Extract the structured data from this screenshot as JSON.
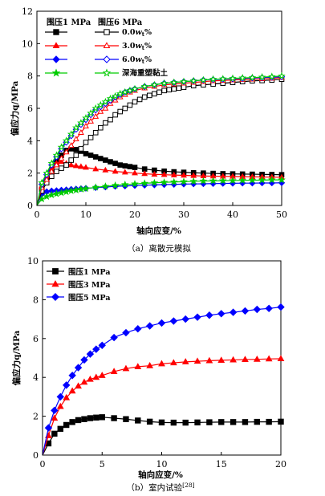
{
  "chart_data": [
    {
      "type": "line",
      "caption": "（a）离散元模拟",
      "xlabel": "轴向应变/%",
      "ylabel": "偏应力q/MPa",
      "xlim": [
        0,
        50
      ],
      "ylim": [
        0,
        12
      ],
      "xticks": [
        "0",
        "10",
        "20",
        "30",
        "40",
        "50"
      ],
      "yticks": [
        "0",
        "2",
        "4",
        "6",
        "8",
        "10",
        "12"
      ],
      "grid": false,
      "legend_placement": "top-left",
      "legend_headers": [
        "围压1 MPa",
        "围压6 MPa"
      ],
      "legend_rows": [
        "0.0w_t%",
        "3.0w_t%",
        "6.0w_t%",
        "深海重塑黏土"
      ],
      "series": [
        {
          "name": "0.0w_t%",
          "confining": "围压1 MPa",
          "color": "#000000",
          "marker": "square",
          "filled": true,
          "x": [
            0,
            1,
            2,
            3,
            4,
            5,
            6,
            7,
            8,
            9,
            10,
            11,
            12,
            13,
            14,
            15,
            16,
            17,
            18,
            19,
            20,
            22,
            24,
            26,
            28,
            30,
            32,
            34,
            36,
            38,
            40,
            42,
            44,
            46,
            48,
            50
          ],
          "y": [
            0,
            1.0,
            1.6,
            2.2,
            2.7,
            3.1,
            3.4,
            3.5,
            3.45,
            3.35,
            3.2,
            3.1,
            3.0,
            2.9,
            2.8,
            2.7,
            2.6,
            2.5,
            2.45,
            2.4,
            2.35,
            2.25,
            2.18,
            2.12,
            2.08,
            2.05,
            2.02,
            2.0,
            1.98,
            1.96,
            1.95,
            1.94,
            1.93,
            1.92,
            1.91,
            1.9
          ]
        },
        {
          "name": "3.0w_t%",
          "confining": "围压1 MPa",
          "color": "#ff0000",
          "marker": "triangle",
          "filled": true,
          "x": [
            0,
            1,
            2,
            3,
            4,
            5,
            6,
            7,
            8,
            9,
            10,
            12,
            14,
            16,
            18,
            20,
            22,
            24,
            26,
            28,
            30,
            32,
            34,
            36,
            38,
            40,
            42,
            44,
            46,
            48,
            50
          ],
          "y": [
            0,
            1.2,
            1.8,
            2.3,
            2.6,
            2.7,
            2.6,
            2.5,
            2.45,
            2.4,
            2.35,
            2.25,
            2.18,
            2.1,
            2.05,
            2.0,
            1.96,
            1.92,
            1.9,
            1.88,
            1.86,
            1.84,
            1.82,
            1.81,
            1.8,
            1.79,
            1.78,
            1.77,
            1.76,
            1.75,
            1.74
          ]
        },
        {
          "name": "6.0w_t%",
          "confining": "围压1 MPa",
          "color": "#0000ff",
          "marker": "diamond",
          "filled": true,
          "x": [
            0,
            1,
            2,
            3,
            4,
            5,
            6,
            7,
            8,
            9,
            10,
            12,
            14,
            16,
            18,
            20,
            22,
            24,
            26,
            28,
            30,
            32,
            34,
            36,
            38,
            40,
            42,
            44,
            46,
            48,
            50
          ],
          "y": [
            0,
            0.7,
            0.85,
            0.9,
            0.92,
            0.95,
            0.97,
            1.0,
            1.02,
            1.04,
            1.06,
            1.1,
            1.14,
            1.18,
            1.2,
            1.23,
            1.25,
            1.27,
            1.29,
            1.3,
            1.32,
            1.33,
            1.34,
            1.35,
            1.36,
            1.37,
            1.38,
            1.38,
            1.39,
            1.39,
            1.4
          ]
        },
        {
          "name": "深海重塑黏土",
          "confining": "围压1 MPa",
          "color": "#00cc00",
          "marker": "star",
          "filled": true,
          "x": [
            0,
            1,
            2,
            3,
            4,
            5,
            6,
            7,
            8,
            9,
            10,
            12,
            14,
            16,
            18,
            20,
            22,
            24,
            26,
            28,
            30,
            32,
            34,
            36,
            38,
            40,
            42,
            44,
            46,
            48,
            50
          ],
          "y": [
            0,
            0.4,
            0.55,
            0.65,
            0.72,
            0.78,
            0.84,
            0.9,
            0.95,
            1.0,
            1.04,
            1.12,
            1.18,
            1.24,
            1.29,
            1.33,
            1.37,
            1.4,
            1.43,
            1.45,
            1.47,
            1.49,
            1.51,
            1.52,
            1.53,
            1.54,
            1.55,
            1.56,
            1.57,
            1.58,
            1.58
          ]
        },
        {
          "name": "0.0w_t%",
          "confining": "围压6 MPa",
          "color": "#000000",
          "marker": "square",
          "filled": false,
          "x": [
            0,
            1,
            2,
            3,
            4,
            5,
            6,
            7,
            8,
            9,
            10,
            11,
            12,
            13,
            14,
            15,
            16,
            17,
            18,
            19,
            20,
            21,
            22,
            23,
            24,
            25,
            26,
            27,
            28,
            29,
            30,
            32,
            34,
            36,
            38,
            40,
            42,
            44,
            46,
            48,
            50
          ],
          "y": [
            0,
            0.9,
            1.4,
            1.8,
            2.1,
            2.3,
            2.5,
            2.8,
            3.1,
            3.5,
            3.9,
            4.2,
            4.5,
            4.8,
            5.1,
            5.3,
            5.6,
            5.8,
            6.0,
            6.2,
            6.4,
            6.55,
            6.7,
            6.8,
            6.9,
            7.0,
            7.1,
            7.15,
            7.2,
            7.25,
            7.3,
            7.4,
            7.45,
            7.5,
            7.55,
            7.6,
            7.65,
            7.7,
            7.72,
            7.75,
            7.8
          ]
        },
        {
          "name": "3.0w_t%",
          "confining": "围压6 MPa",
          "color": "#ff0000",
          "marker": "triangle",
          "filled": false,
          "x": [
            0,
            1,
            2,
            3,
            4,
            5,
            6,
            7,
            8,
            9,
            10,
            11,
            12,
            13,
            14,
            15,
            16,
            17,
            18,
            19,
            20,
            22,
            24,
            26,
            28,
            30,
            32,
            34,
            36,
            38,
            40,
            42,
            44,
            46,
            48,
            50
          ],
          "y": [
            0,
            1.1,
            1.6,
            2.1,
            2.5,
            2.9,
            3.3,
            3.7,
            4.1,
            4.5,
            4.9,
            5.2,
            5.5,
            5.8,
            6.0,
            6.3,
            6.5,
            6.7,
            6.85,
            7.0,
            7.1,
            7.25,
            7.35,
            7.45,
            7.5,
            7.55,
            7.6,
            7.65,
            7.7,
            7.72,
            7.75,
            7.78,
            7.8,
            7.82,
            7.85,
            7.9
          ]
        },
        {
          "name": "6.0w_t%",
          "confining": "围压6 MPa",
          "color": "#0000ff",
          "marker": "diamond",
          "filled": false,
          "x": [
            0,
            1,
            2,
            3,
            4,
            5,
            6,
            7,
            8,
            9,
            10,
            11,
            12,
            13,
            14,
            15,
            16,
            17,
            18,
            19,
            20,
            22,
            24,
            26,
            28,
            30,
            32,
            34,
            36,
            38,
            40,
            42,
            44,
            46,
            48,
            50
          ],
          "y": [
            0,
            1.3,
            1.9,
            2.5,
            3.0,
            3.5,
            3.9,
            4.3,
            4.7,
            5.0,
            5.3,
            5.6,
            5.9,
            6.1,
            6.3,
            6.5,
            6.7,
            6.85,
            7.0,
            7.1,
            7.2,
            7.35,
            7.45,
            7.55,
            7.6,
            7.65,
            7.7,
            7.75,
            7.78,
            7.8,
            7.82,
            7.85,
            7.88,
            7.9,
            7.92,
            7.95
          ]
        },
        {
          "name": "深海重塑黏土",
          "confining": "围压6 MPa",
          "color": "#00cc00",
          "marker": "star",
          "filled": false,
          "x": [
            0,
            1,
            2,
            3,
            4,
            5,
            6,
            7,
            8,
            9,
            10,
            11,
            12,
            13,
            14,
            15,
            16,
            17,
            18,
            19,
            20,
            22,
            24,
            26,
            28,
            30,
            32,
            34,
            36,
            38,
            40,
            42,
            44,
            46,
            48,
            50
          ],
          "y": [
            0,
            1.4,
            2.0,
            2.6,
            3.1,
            3.6,
            4.0,
            4.4,
            4.8,
            5.1,
            5.4,
            5.7,
            6.0,
            6.2,
            6.4,
            6.6,
            6.75,
            6.9,
            7.0,
            7.1,
            7.2,
            7.35,
            7.45,
            7.55,
            7.6,
            7.65,
            7.7,
            7.75,
            7.8,
            7.82,
            7.85,
            7.88,
            7.9,
            7.93,
            7.96,
            8.0
          ]
        }
      ]
    },
    {
      "type": "line",
      "caption": "（b）室内试验",
      "caption_ref": "[28]",
      "xlabel": "轴向应变/%",
      "ylabel": "偏应力q/MPa",
      "xlim": [
        0,
        20
      ],
      "ylim": [
        0,
        10
      ],
      "xticks": [
        "0",
        "5",
        "10",
        "15",
        "20"
      ],
      "yticks": [
        "0",
        "2",
        "4",
        "6",
        "8",
        "10"
      ],
      "grid": false,
      "legend_placement": "top-left",
      "series": [
        {
          "name": "围压1 MPa",
          "color": "#000000",
          "marker": "square",
          "filled": true,
          "x": [
            0,
            0.5,
            1,
            1.5,
            2,
            2.5,
            3,
            3.5,
            4,
            4.5,
            5,
            6,
            7,
            8,
            9,
            10,
            11,
            12,
            13,
            14,
            15,
            16,
            17,
            18,
            19,
            20
          ],
          "y": [
            0,
            0.6,
            1.1,
            1.35,
            1.55,
            1.7,
            1.8,
            1.85,
            1.9,
            1.93,
            1.95,
            1.9,
            1.85,
            1.78,
            1.72,
            1.68,
            1.67,
            1.67,
            1.68,
            1.69,
            1.7,
            1.7,
            1.7,
            1.71,
            1.71,
            1.72
          ]
        },
        {
          "name": "围压3 MPa",
          "color": "#ff0000",
          "marker": "triangle",
          "filled": true,
          "x": [
            0,
            0.5,
            1,
            1.5,
            2,
            2.5,
            3,
            3.5,
            4,
            4.5,
            5,
            6,
            7,
            8,
            9,
            10,
            11,
            12,
            13,
            14,
            15,
            16,
            17,
            18,
            19,
            20
          ],
          "y": [
            0,
            1.0,
            1.9,
            2.5,
            2.95,
            3.3,
            3.55,
            3.75,
            3.9,
            4.0,
            4.1,
            4.3,
            4.45,
            4.55,
            4.6,
            4.7,
            4.75,
            4.8,
            4.83,
            4.86,
            4.88,
            4.9,
            4.92,
            4.93,
            4.95,
            4.96
          ]
        },
        {
          "name": "围压5 MPa",
          "color": "#0000ff",
          "marker": "diamond",
          "filled": true,
          "x": [
            0,
            0.5,
            1,
            1.5,
            2,
            2.5,
            3,
            3.5,
            4,
            4.5,
            5,
            6,
            7,
            8,
            9,
            10,
            11,
            12,
            13,
            14,
            15,
            16,
            17,
            18,
            19,
            20
          ],
          "y": [
            0,
            1.4,
            2.3,
            3.0,
            3.6,
            4.1,
            4.5,
            4.9,
            5.2,
            5.45,
            5.65,
            6.05,
            6.3,
            6.5,
            6.65,
            6.8,
            6.9,
            7.0,
            7.1,
            7.2,
            7.28,
            7.35,
            7.42,
            7.5,
            7.55,
            7.62
          ]
        }
      ]
    }
  ]
}
